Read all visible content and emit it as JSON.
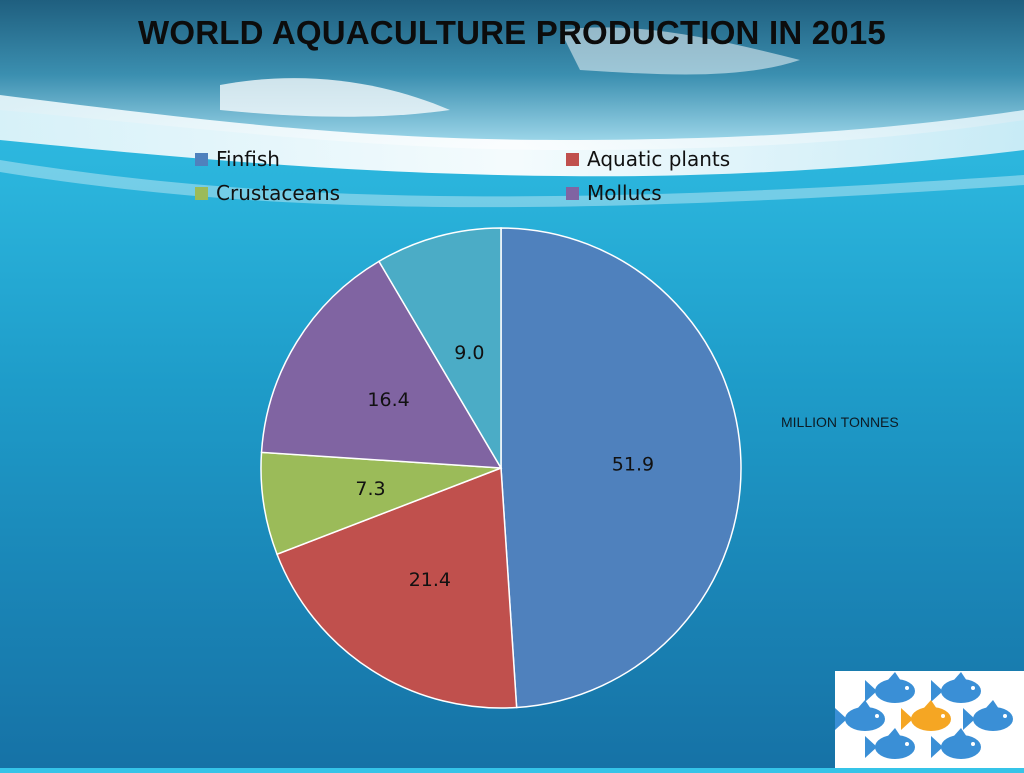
{
  "page": {
    "title": "WORLD AQUACULTURE PRODUCTION IN 2015",
    "unit_note": "MILLION TONNES"
  },
  "chart_data": {
    "type": "pie",
    "title": "WORLD AQUACULTURE PRODUCTION IN 2015",
    "unit": "MILLION TONNES",
    "legend_position": "top",
    "slices": [
      {
        "name": "Finfish",
        "value": 51.9,
        "label": "51.9",
        "color": "#4f81bd"
      },
      {
        "name": "Aquatic plants",
        "value": 21.4,
        "label": "21.4",
        "color": "#c0504d"
      },
      {
        "name": "Crustaceans",
        "value": 7.3,
        "label": "7.3",
        "color": "#9bbb59"
      },
      {
        "name": "Mollucs",
        "value": 16.4,
        "label": "16.4",
        "color": "#8064a2"
      },
      {
        "name": "",
        "value": 9.0,
        "label": "9.0",
        "color": "#4bacc6"
      }
    ]
  },
  "legend": {
    "items": [
      {
        "label": "Finfish",
        "color": "#4f81bd"
      },
      {
        "label": "Aquatic plants",
        "color": "#c0504d"
      },
      {
        "label": "Crustaceans",
        "color": "#9bbb59"
      },
      {
        "label": "Mollucs",
        "color": "#8064a2"
      }
    ]
  },
  "logo": {
    "icon": "fish-school-icon",
    "fish_color": "#3a8fd6",
    "highlight_fish_color": "#f5a623"
  }
}
